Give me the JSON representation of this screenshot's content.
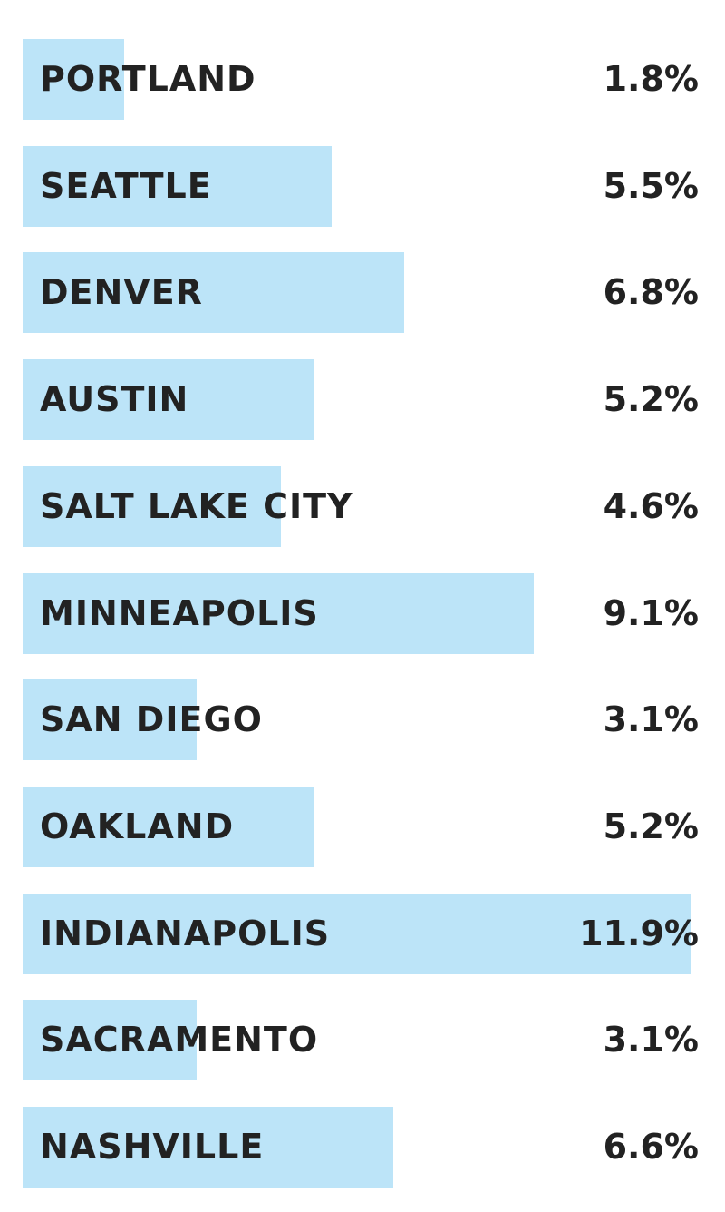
{
  "colors": {
    "bar": "#bce4f8",
    "text": "#222222"
  },
  "chart_data": {
    "type": "bar",
    "orientation": "horizontal",
    "categories": [
      "PORTLAND",
      "SEATTLE",
      "DENVER",
      "AUSTIN",
      "SALT LAKE CITY",
      "MINNEAPOLIS",
      "SAN DIEGO",
      "OAKLAND",
      "INDIANAPOLIS",
      "SACRAMENTO",
      "NASHVILLE"
    ],
    "values": [
      1.8,
      5.5,
      6.8,
      5.2,
      4.6,
      9.1,
      3.1,
      5.2,
      11.9,
      3.1,
      6.6
    ],
    "labels": [
      "1.8%",
      "5.5%",
      "6.8%",
      "5.2%",
      "4.6%",
      "9.1%",
      "3.1%",
      "5.2%",
      "11.9%",
      "3.1%",
      "6.6%"
    ],
    "xlim": [
      0,
      12.1
    ],
    "grid": false
  }
}
